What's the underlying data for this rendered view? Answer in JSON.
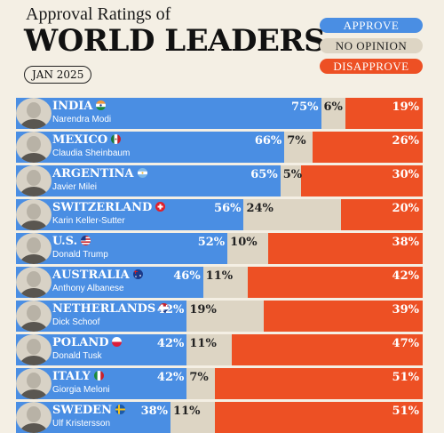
{
  "header": {
    "subtitle": "Approval Ratings of",
    "title": "WORLD LEADERS",
    "date": "JAN 2025"
  },
  "legend": {
    "approve": "APPROVE",
    "no_opinion": "NO OPINION",
    "disapprove": "DISAPPROVE"
  },
  "colors": {
    "approve": "#4a8ee3",
    "no_opinion": "#ddd5c4",
    "disapprove": "#ed5024",
    "background": "#f4efe4"
  },
  "chart_data": {
    "type": "bar",
    "stacked": true,
    "orientation": "horizontal",
    "title": "WORLD LEADERS",
    "subtitle": "Approval Ratings of",
    "date": "JAN 2025",
    "series_names": [
      "APPROVE",
      "NO OPINION",
      "DISAPPROVE"
    ],
    "legend_position": "top-right",
    "rows": [
      {
        "country": "INDIA",
        "leader": "Narendra Modi",
        "flag": "india-flag-icon",
        "approve": 75,
        "no_opinion": 6,
        "disapprove": 19
      },
      {
        "country": "MEXICO",
        "leader": "Claudia Sheinbaum",
        "flag": "mexico-flag-icon",
        "approve": 66,
        "no_opinion": 7,
        "disapprove": 26
      },
      {
        "country": "ARGENTINA",
        "leader": "Javier Milei",
        "flag": "argentina-flag-icon",
        "approve": 65,
        "no_opinion": 5,
        "disapprove": 30
      },
      {
        "country": "SWITZERLAND",
        "leader": "Karin Keller-Sutter",
        "flag": "switzerland-flag-icon",
        "approve": 56,
        "no_opinion": 24,
        "disapprove": 20
      },
      {
        "country": "U.S.",
        "leader": "Donald Trump",
        "flag": "us-flag-icon",
        "approve": 52,
        "no_opinion": 10,
        "disapprove": 38
      },
      {
        "country": "AUSTRALIA",
        "leader": "Anthony Albanese",
        "flag": "australia-flag-icon",
        "approve": 46,
        "no_opinion": 11,
        "disapprove": 42
      },
      {
        "country": "NETHERLANDS",
        "leader": "Dick Schoof",
        "flag": "netherlands-flag-icon",
        "approve": 42,
        "no_opinion": 19,
        "disapprove": 39
      },
      {
        "country": "POLAND",
        "leader": "Donald Tusk",
        "flag": "poland-flag-icon",
        "approve": 42,
        "no_opinion": 11,
        "disapprove": 47
      },
      {
        "country": "ITALY",
        "leader": "Giorgia Meloni",
        "flag": "italy-flag-icon",
        "approve": 42,
        "no_opinion": 7,
        "disapprove": 51
      },
      {
        "country": "SWEDEN",
        "leader": "Ulf Kristersson",
        "flag": "sweden-flag-icon",
        "approve": 38,
        "no_opinion": 11,
        "disapprove": 51
      }
    ]
  }
}
